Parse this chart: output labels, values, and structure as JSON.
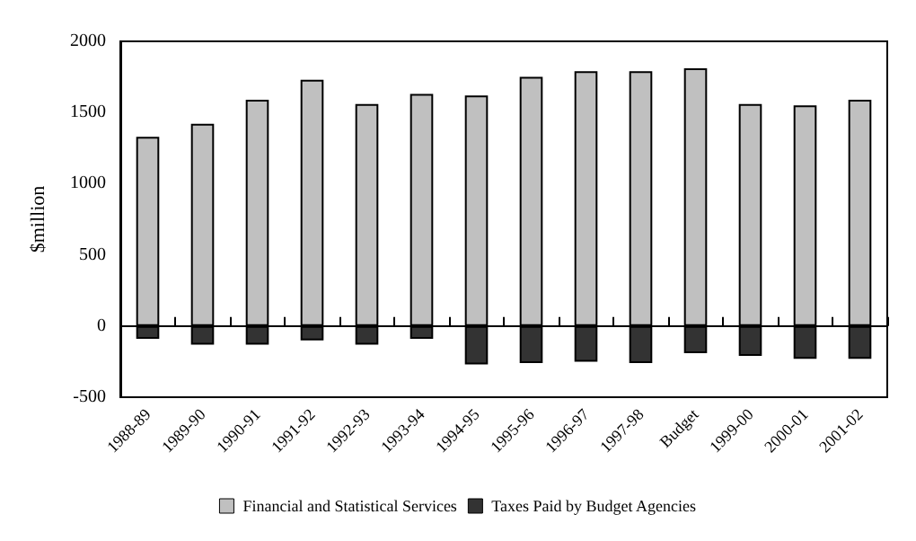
{
  "chart_data": {
    "type": "bar",
    "ylabel": "$million",
    "categories": [
      "1988-89",
      "1989-90",
      "1990-91",
      "1991-92",
      "1992-93",
      "1993-94",
      "1994-95",
      "1995-96",
      "1996-97",
      "1997-98",
      "Budget",
      "1999-00",
      "2000-01",
      "2001-02"
    ],
    "series": [
      {
        "name": "Financial and Statistical Services",
        "color": "#c0c0c0",
        "values": [
          1330,
          1420,
          1590,
          1730,
          1560,
          1630,
          1620,
          1750,
          1790,
          1790,
          1810,
          1560,
          1550,
          1590
        ]
      },
      {
        "name": "Taxes Paid by Budget Agencies",
        "color": "#333333",
        "values": [
          -90,
          -130,
          -130,
          -100,
          -130,
          -90,
          -270,
          -260,
          -250,
          -260,
          -190,
          -210,
          -230,
          -230
        ]
      }
    ],
    "stacked": true,
    "ylim": [
      -500,
      2000
    ],
    "yticks": [
      -500,
      0,
      500,
      1000,
      1500,
      2000
    ],
    "legend": "bottom"
  }
}
